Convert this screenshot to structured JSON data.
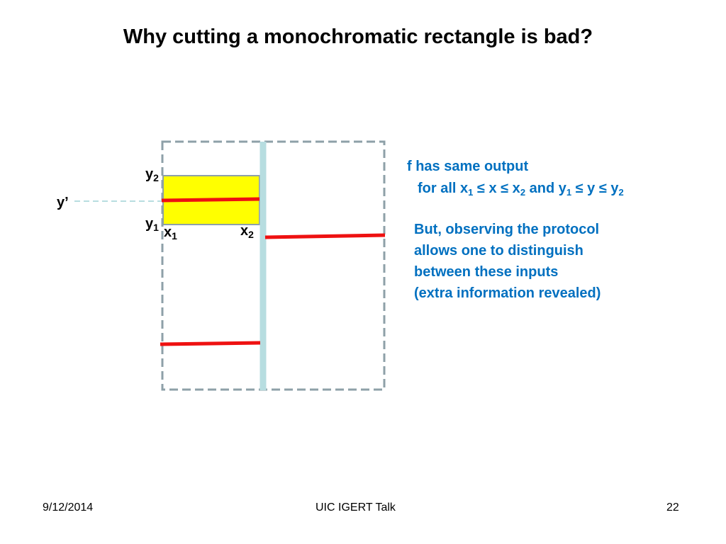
{
  "slide": {
    "title": "Why cutting a monochromatic rectangle is bad?"
  },
  "diagram": {
    "labels": {
      "y2": "y",
      "y2_sub": "2",
      "y_prime": "y’",
      "y1": "y",
      "y1_sub": "1",
      "x1": "x",
      "x1_sub": "1",
      "x2": "x",
      "x2_sub": "2"
    },
    "colors": {
      "rectangle_fill": "#ffff00",
      "cut_line": "#ee1111",
      "divider": "#b7dde0",
      "dashed_border": "#8ea0a8"
    }
  },
  "notes": {
    "line1_prefix": "f  has same output",
    "line2": {
      "for_all": "for all x",
      "x1_sub": "1",
      "leq1": " ≤ x ≤ x",
      "x2_sub": "2",
      "and": " and y",
      "y1_sub": "1",
      "leq2": " ≤ y ≤ y",
      "y2_sub": "2"
    },
    "paragraph": [
      "But, observing the protocol",
      "allows one to distinguish",
      "between these inputs",
      "(extra information revealed)"
    ]
  },
  "footer": {
    "date": "9/12/2014",
    "center": "UIC IGERT Talk",
    "page": "22"
  }
}
